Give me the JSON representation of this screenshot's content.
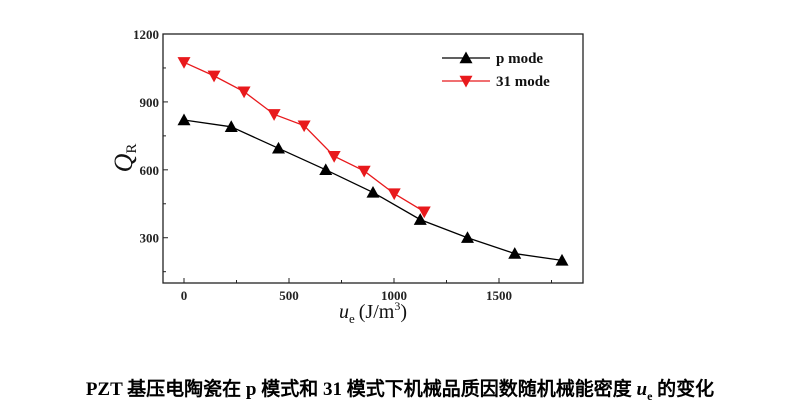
{
  "chart_data": {
    "type": "line",
    "xlabel_main": "u",
    "xlabel_sub": "e",
    "xlabel_unit": "(J/m",
    "xlabel_sup": "3",
    "xlabel_close": ")",
    "ylabel_main": "Q",
    "ylabel_sub": "R",
    "xlim": [
      -100,
      1900
    ],
    "ylim": [
      100,
      1200
    ],
    "xticks": [
      0,
      500,
      1000,
      1500
    ],
    "yticks": [
      300,
      600,
      900,
      1200
    ],
    "grid": false,
    "legend_placement": "top-right",
    "series": [
      {
        "name": "p mode",
        "color": "#000000",
        "marker": "triangle-up",
        "x": [
          0,
          225,
          450,
          675,
          900,
          1125,
          1350,
          1575,
          1800
        ],
        "y": [
          820,
          790,
          695,
          600,
          500,
          380,
          300,
          230,
          200
        ]
      },
      {
        "name": "31 mode",
        "color": "#e8191c",
        "marker": "triangle-down",
        "x": [
          0,
          143,
          286,
          429,
          572,
          715,
          858,
          1001,
          1144
        ],
        "y": [
          1075,
          1015,
          945,
          845,
          795,
          660,
          595,
          495,
          415
        ]
      }
    ]
  },
  "caption": {
    "prefix": "PZT 基压电陶瓷在 p 模式和 31 模式下机械品质因数随机械能密度 ",
    "var": "u",
    "sub": "e",
    "suffix": " 的变化"
  }
}
